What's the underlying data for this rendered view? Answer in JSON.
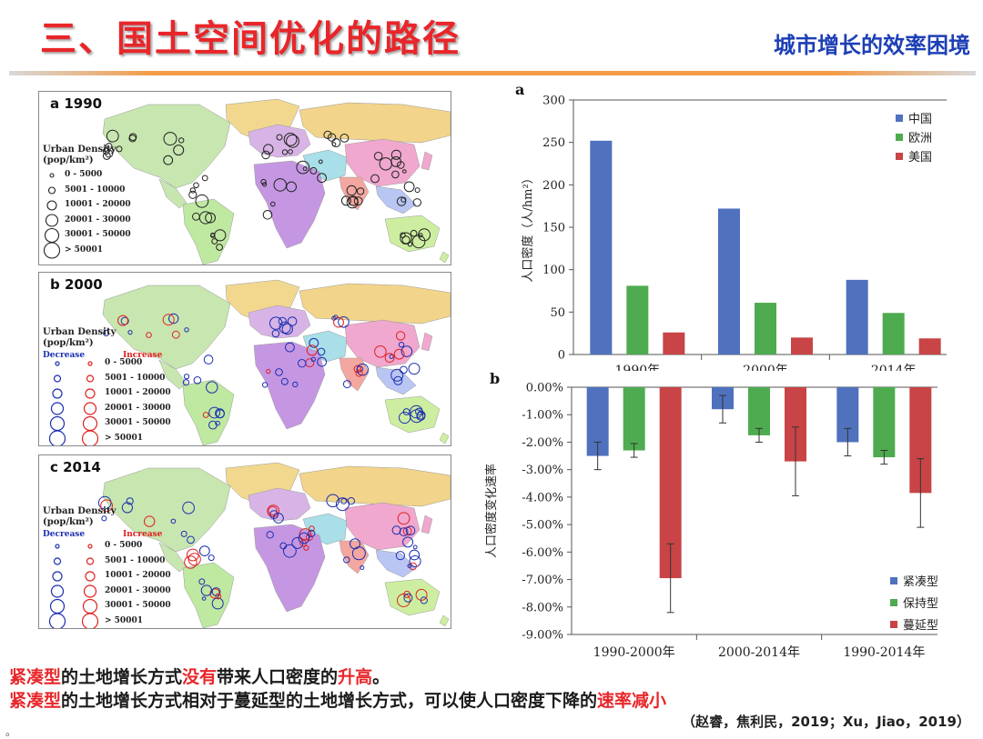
{
  "header": {
    "title": "三、国土空间优化的路径",
    "subtitle": "城市增长的效率困境"
  },
  "maps": {
    "panels": [
      {
        "tag": "a 1990"
      },
      {
        "tag": "b 2000"
      },
      {
        "tag": "c 2014"
      }
    ],
    "legend": {
      "title_line1": "Urban Density",
      "title_line2": "(pop/km²)",
      "decrease": "Decrease",
      "increase": "Increase",
      "ranges": [
        "0 - 5000",
        "5001 - 10000",
        "10001 - 20000",
        "20001 - 30000",
        "30001 - 50000",
        "> 50001"
      ]
    },
    "colors": {
      "decrease": "#1b2fb0",
      "increase": "#e02020",
      "neutral": "#222222"
    }
  },
  "chart_data": [
    {
      "type": "bar",
      "panel_label": "a",
      "categories": [
        "1990年",
        "2000年",
        "2014年"
      ],
      "series": [
        {
          "name": "中国",
          "values": [
            252,
            172,
            88
          ],
          "color": "#4f71be"
        },
        {
          "name": "欧洲",
          "values": [
            81,
            61,
            49
          ],
          "color": "#4eab4f"
        },
        {
          "name": "美国",
          "values": [
            26,
            20,
            19
          ],
          "color": "#c84446"
        }
      ],
      "ylabel": "人口密度（人/hm²）",
      "ylim": [
        0,
        300
      ],
      "yticks": [
        "0",
        "50",
        "100",
        "150",
        "200",
        "250",
        "300"
      ],
      "legend_position": "top-right",
      "grid": false
    },
    {
      "type": "bar",
      "panel_label": "b",
      "categories": [
        "1990-2000年",
        "2000-2014年",
        "1990-2014年"
      ],
      "series": [
        {
          "name": "紧凑型",
          "values": [
            -2.5,
            -0.8,
            -2.0
          ],
          "errors": [
            0.5,
            0.5,
            0.5
          ],
          "color": "#4f71be"
        },
        {
          "name": "保持型",
          "values": [
            -2.3,
            -1.75,
            -2.55
          ],
          "errors": [
            0.25,
            0.25,
            0.25
          ],
          "color": "#4eab4f"
        },
        {
          "name": "蔓延型",
          "values": [
            -6.95,
            -2.7,
            -3.85
          ],
          "errors": [
            1.25,
            1.25,
            1.25
          ],
          "color": "#c84446"
        }
      ],
      "ylabel": "人口密度变化速率",
      "ylim": [
        -9,
        0
      ],
      "yticks": [
        "0.00%",
        "-1.00%",
        "-2.00%",
        "-3.00%",
        "-4.00%",
        "-5.00%",
        "-6.00%",
        "-7.00%",
        "-8.00%",
        "-9.00%"
      ],
      "legend_position": "bottom-right",
      "grid": false
    }
  ],
  "bottom": {
    "line1": {
      "a": "紧凑型",
      "b": "的土地增长方式",
      "c": "没有",
      "d": "带来人口密度的",
      "e": "升高",
      "f": "。"
    },
    "line2": {
      "a": "紧凑型",
      "b": "的土地增长方式相对于蔓延型的土地增长方式，可以使人口密度下降的",
      "c": "速率减小"
    },
    "citation": "（赵睿，焦利民，2019；Xu，Jiao，2019）",
    "bullet": "。"
  }
}
